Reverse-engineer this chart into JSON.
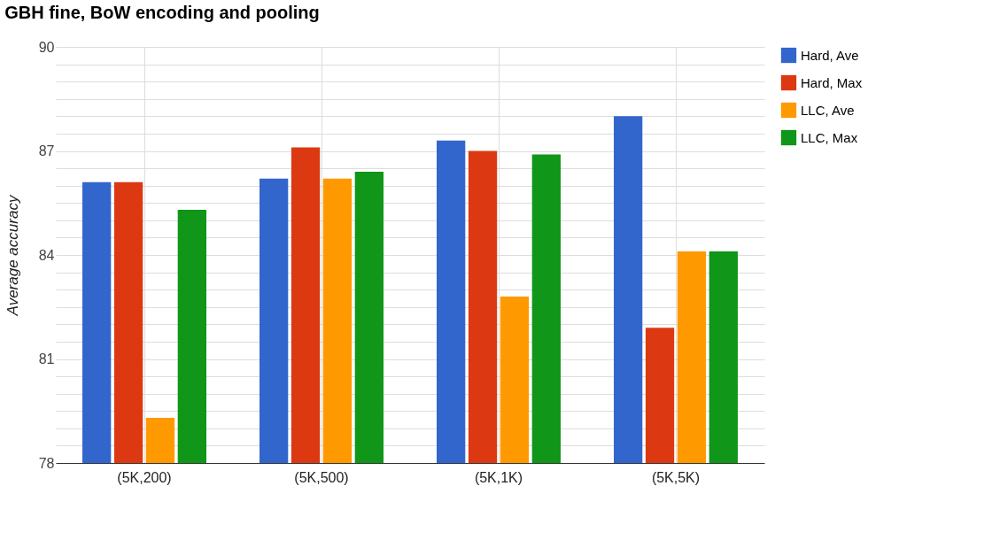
{
  "chart_data": {
    "type": "bar",
    "title": "GBH fine, BoW encoding and pooling",
    "ylabel": "Average accuracy",
    "categories": [
      "(5K,200)",
      "(5K,500)",
      "(5K,1K)",
      "(5K,5K)"
    ],
    "series": [
      {
        "name": "Hard, Ave",
        "color": "#3366cc",
        "values": [
          86.1,
          86.2,
          87.3,
          88.0
        ]
      },
      {
        "name": "Hard, Max",
        "color": "#dc3912",
        "values": [
          86.1,
          87.1,
          87.0,
          81.9
        ]
      },
      {
        "name": "LLC, Ave",
        "color": "#ff9900",
        "values": [
          79.3,
          86.2,
          82.8,
          84.1
        ]
      },
      {
        "name": "LLC, Max",
        "color": "#109618",
        "values": [
          85.3,
          86.4,
          86.9,
          84.1
        ]
      }
    ],
    "ylim": [
      78,
      90
    ],
    "yticks": [
      78,
      {
        "value": 78.5,
        "label": null
      },
      {
        "value": 79,
        "label": null
      },
      {
        "value": 79.5,
        "label": null
      },
      {
        "value": 80,
        "label": null
      },
      {
        "value": 80.5,
        "label": null
      },
      81,
      {
        "value": 81.5,
        "label": null
      },
      {
        "value": 82,
        "label": null
      },
      {
        "value": 82.5,
        "label": null
      },
      {
        "value": 83,
        "label": null
      },
      {
        "value": 83.5,
        "label": null
      },
      84,
      {
        "value": 84.5,
        "label": null
      },
      {
        "value": 85,
        "label": null
      },
      {
        "value": 85.5,
        "label": null
      },
      {
        "value": 86,
        "label": null
      },
      {
        "value": 86.5,
        "label": null
      },
      87,
      {
        "value": 87.5,
        "label": null
      },
      {
        "value": 88,
        "label": null
      },
      {
        "value": 88.5,
        "label": null
      },
      {
        "value": 89,
        "label": null
      },
      {
        "value": 89.5,
        "label": null
      },
      90
    ],
    "grid": true,
    "legend": "top right"
  }
}
